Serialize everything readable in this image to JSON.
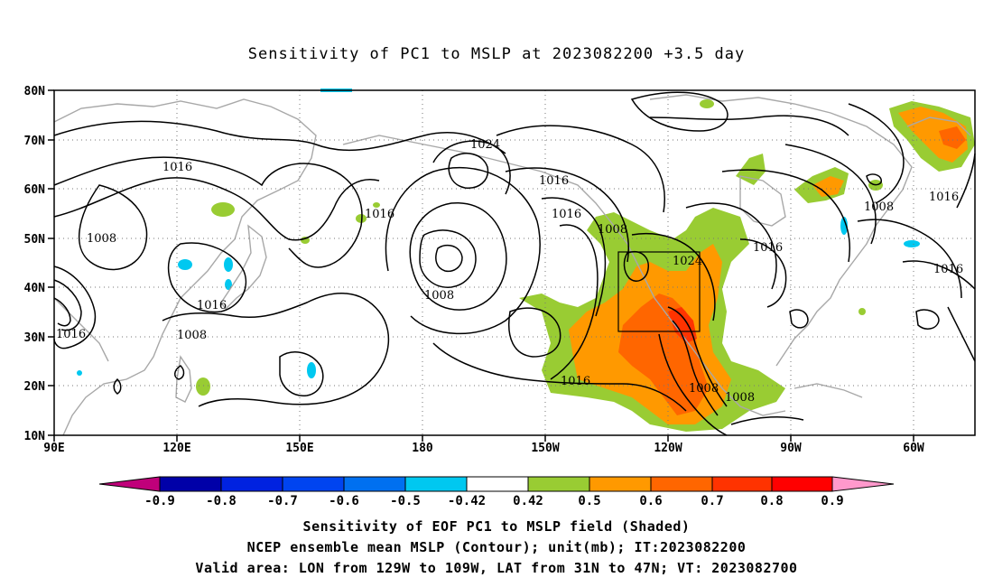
{
  "title": "Sensitivity of PC1 to MSLP at 2023082200 +3.5 day",
  "axes": {
    "lat_labels": [
      "80N",
      "70N",
      "60N",
      "50N",
      "40N",
      "30N",
      "20N",
      "10N"
    ],
    "lon_labels": [
      "90E",
      "120E",
      "150E",
      "180",
      "150W",
      "120W",
      "90W",
      "60W"
    ]
  },
  "contour_labels": [
    "1008",
    "1016",
    "1016",
    "1008",
    "1016",
    "1016",
    "1024",
    "1008",
    "1016",
    "1016",
    "1008",
    "1024",
    "1016",
    "1016",
    "1008",
    "1008",
    "1016",
    "1016",
    "1008",
    "1008"
  ],
  "colorbar": {
    "tick_labels": [
      "-0.9",
      "-0.8",
      "-0.7",
      "-0.6",
      "-0.5",
      "-0.42",
      "0.42",
      "0.5",
      "0.6",
      "0.7",
      "0.8",
      "0.9"
    ],
    "colors": [
      "#c0007a",
      "#0000a8",
      "#0022e0",
      "#0044f0",
      "#0070f0",
      "#00a8f0",
      "#00c8f0",
      "#ffffff",
      "#99cc33",
      "#ff9900",
      "#ff6600",
      "#ff4400",
      "#ff0000",
      "#ff99cc"
    ]
  },
  "captions": {
    "line1": "Sensitivity of EOF PC1 to MSLP field (Shaded)",
    "line2": "NCEP ensemble mean MSLP (Contour); unit(mb); IT:2023082200",
    "line3": "Valid area: LON from 129W to 109W, LAT from 31N to 47N; VT: 2023082700"
  }
}
